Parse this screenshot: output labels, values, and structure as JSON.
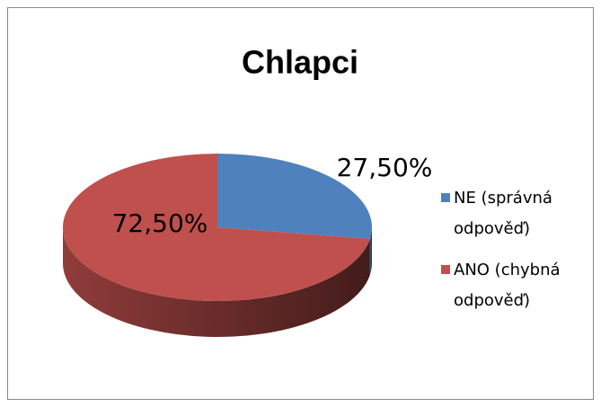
{
  "chart_data": {
    "type": "pie3d",
    "title": "Chlapci",
    "categories": [
      "NE (správná odpověď)",
      "ANO (chybná odpověď)"
    ],
    "values": [
      27.5,
      72.5
    ],
    "value_labels": [
      "27,50%",
      "72,50%"
    ],
    "colors": [
      "#4f81bd",
      "#c0504d"
    ],
    "legend": "right"
  }
}
